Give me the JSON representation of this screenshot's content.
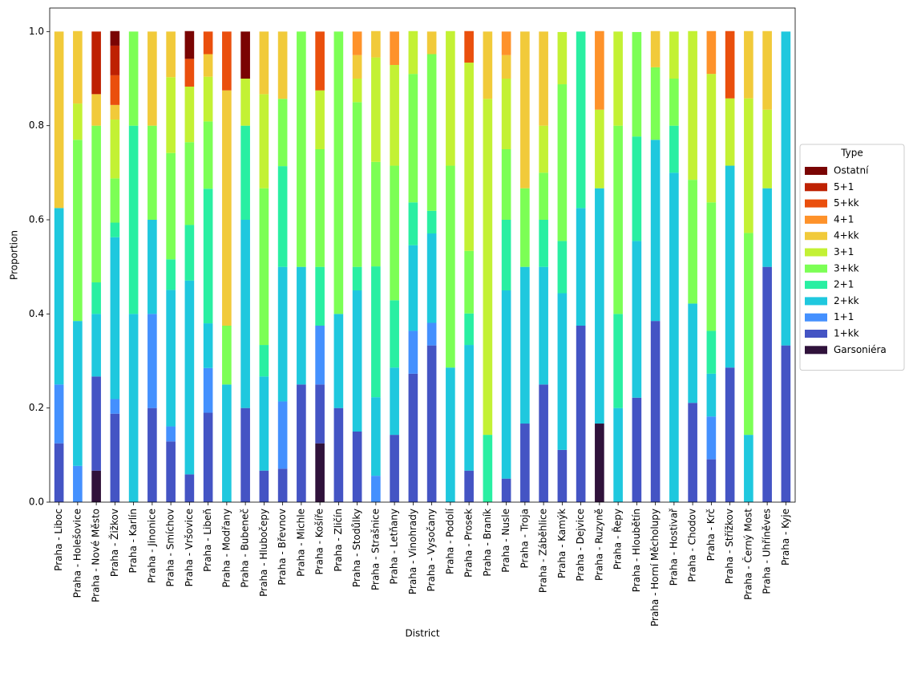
{
  "chart_data": {
    "type": "stacked_bar",
    "x_label": "District",
    "y_label": "Proportion",
    "legend_title": "Type",
    "legend_position": "outside right",
    "ylim": [
      0,
      1.05
    ],
    "yticks": [
      {
        "value": 0,
        "label": "0.0"
      },
      0.2,
      0.4,
      0.6,
      0.8,
      {
        "value": 1,
        "label": "1.0"
      }
    ],
    "categories": [
      "Praha - Liboc",
      "Praha - Holešovice",
      "Praha - Nové Město",
      "Praha - Žižkov",
      "Praha - Karlín",
      "Praha - Jinonice",
      "Praha - Smíchov",
      "Praha - Vršovice",
      "Praha - Libeň",
      "Praha - Modřany",
      "Praha - Bubeneč",
      "Praha - Hlubočepy",
      "Praha - Břevnov",
      "Praha - Michle",
      "Praha - Košíře",
      "Praha - Zličín",
      "Praha - Stodůlky",
      "Praha - Strašnice",
      "Praha - Letňany",
      "Praha - Vinohrady",
      "Praha - Vysočany",
      "Praha - Podolí",
      "Praha - Prosek",
      "Praha - Braník",
      "Praha - Nusle",
      "Praha - Troja",
      "Praha - Záběhlice",
      "Praha - Kamýk",
      "Praha - Dejvice",
      "Praha - Ruzyně",
      "Praha - Řepy",
      "Praha - Hloubětín",
      "Praha - Horní Měcholupy",
      "Praha - Hostivař",
      "Praha - Chodov",
      "Praha - Krč",
      "Praha - Střížkov",
      "Praha - Černý Most",
      "Praha - Uhříněves",
      "Praha - Kyje"
    ],
    "series": [
      {
        "name": "Garsoniéra",
        "color": "#30123b",
        "values": [
          0,
          0,
          0.067,
          0,
          0,
          0,
          0,
          0,
          0,
          0,
          0,
          0,
          0,
          0,
          0.125,
          0,
          0,
          0,
          0,
          0,
          0,
          0,
          0,
          0,
          0,
          0,
          0,
          0,
          0,
          0.167,
          0,
          0,
          0,
          0,
          0,
          0,
          0,
          0,
          0,
          0
        ]
      },
      {
        "name": "1+kk",
        "color": "#4454c4",
        "values": [
          0.125,
          0,
          0.2,
          0.188,
          0,
          0.2,
          0.129,
          0.059,
          0.19,
          0,
          0.2,
          0.067,
          0.071,
          0.25,
          0.125,
          0.2,
          0.15,
          0,
          0.143,
          0.273,
          0.333,
          0,
          0.067,
          0,
          0.05,
          0.167,
          0.25,
          0.111,
          0.375,
          0,
          0,
          0.222,
          0.385,
          0,
          0.211,
          0.091,
          0.286,
          0,
          0.5,
          0.333
        ]
      },
      {
        "name": "1+1",
        "color": "#4490fe",
        "values": [
          0.125,
          0.077,
          0,
          0.031,
          0,
          0.2,
          0.032,
          0,
          0.095,
          0,
          0,
          0,
          0.143,
          0,
          0.125,
          0,
          0,
          0.056,
          0,
          0.091,
          0.048,
          0,
          0,
          0,
          0,
          0,
          0,
          0,
          0,
          0,
          0,
          0,
          0,
          0,
          0,
          0.091,
          0,
          0,
          0,
          0
        ]
      },
      {
        "name": "2+kk",
        "color": "#1fc8de",
        "values": [
          0.375,
          0.308,
          0.133,
          0.344,
          0.4,
          0.2,
          0.29,
          0.412,
          0.095,
          0.25,
          0.4,
          0.2,
          0.286,
          0.25,
          0,
          0.2,
          0.3,
          0.167,
          0.143,
          0.182,
          0.19,
          0.286,
          0.267,
          0,
          0.4,
          0.333,
          0.25,
          0.333,
          0.25,
          0.5,
          0.2,
          0.333,
          0.385,
          0.7,
          0.211,
          0.091,
          0.429,
          0.143,
          0.167,
          0.667
        ]
      },
      {
        "name": "2+1",
        "color": "#29efa2",
        "values": [
          0,
          0,
          0.067,
          0.031,
          0.4,
          0,
          0.065,
          0.118,
          0.286,
          0,
          0.2,
          0.067,
          0.214,
          0,
          0.125,
          0,
          0.05,
          0.278,
          0.143,
          0.091,
          0.048,
          0,
          0.067,
          0.143,
          0.15,
          0,
          0.1,
          0.111,
          0.375,
          0,
          0.2,
          0.222,
          0,
          0.1,
          0,
          0.091,
          0,
          0,
          0,
          0
        ]
      },
      {
        "name": "3+kk",
        "color": "#7cff55",
        "values": [
          0,
          0.385,
          0.333,
          0.094,
          0.2,
          0.2,
          0.226,
          0.176,
          0.143,
          0.125,
          0,
          0.333,
          0.143,
          0.5,
          0.25,
          0.6,
          0.35,
          0.222,
          0.286,
          0.273,
          0.333,
          0.429,
          0.133,
          0,
          0.15,
          0.167,
          0.1,
          0.333,
          0,
          0,
          0.4,
          0.222,
          0.154,
          0.1,
          0.263,
          0.273,
          0,
          0.429,
          0,
          0
        ]
      },
      {
        "name": "3+1",
        "color": "#c3f134",
        "values": [
          0,
          0.077,
          0,
          0.125,
          0,
          0,
          0.161,
          0.118,
          0.095,
          0,
          0.1,
          0.2,
          0,
          0,
          0.125,
          0,
          0.05,
          0.222,
          0.214,
          0.091,
          0,
          0.286,
          0.4,
          0.714,
          0.15,
          0,
          0.1,
          0.111,
          0,
          0.167,
          0.2,
          0,
          0,
          0.1,
          0.316,
          0.273,
          0.143,
          0.286,
          0.167,
          0
        ]
      },
      {
        "name": "4+kk",
        "color": "#f1ca3a",
        "values": [
          0.375,
          0.154,
          0.067,
          0.031,
          0,
          0.2,
          0.097,
          0,
          0.048,
          0.5,
          0,
          0.133,
          0.143,
          0,
          0,
          0,
          0.05,
          0.056,
          0,
          0,
          0.048,
          0,
          0,
          0.143,
          0.05,
          0.333,
          0.2,
          0,
          0,
          0,
          0,
          0,
          0.077,
          0,
          0,
          0,
          0,
          0.143,
          0.167,
          0
        ]
      },
      {
        "name": "4+1",
        "color": "#fe922a",
        "values": [
          0,
          0,
          0,
          0,
          0,
          0,
          0,
          0,
          0,
          0,
          0,
          0,
          0,
          0,
          0,
          0,
          0.05,
          0,
          0.071,
          0,
          0,
          0,
          0,
          0,
          0.05,
          0,
          0,
          0,
          0,
          0.167,
          0,
          0,
          0,
          0,
          0,
          0.091,
          0,
          0,
          0,
          0
        ]
      },
      {
        "name": "5+kk",
        "color": "#ea4f0d",
        "values": [
          0,
          0,
          0,
          0.063,
          0,
          0,
          0,
          0.059,
          0.048,
          0.125,
          0,
          0,
          0,
          0,
          0.125,
          0,
          0,
          0,
          0,
          0,
          0,
          0,
          0.067,
          0,
          0,
          0,
          0,
          0,
          0,
          0,
          0,
          0,
          0,
          0,
          0,
          0,
          0.143,
          0,
          0,
          0
        ]
      },
      {
        "name": "5+1",
        "color": "#be2102",
        "values": [
          0,
          0,
          0.133,
          0.063,
          0,
          0,
          0,
          0,
          0,
          0,
          0,
          0,
          0,
          0,
          0,
          0,
          0,
          0,
          0,
          0,
          0,
          0,
          0,
          0,
          0,
          0,
          0,
          0,
          0,
          0,
          0,
          0,
          0,
          0,
          0,
          0,
          0,
          0,
          0,
          0
        ]
      },
      {
        "name": "Ostatní",
        "color": "#7a0403",
        "values": [
          0,
          0,
          0,
          0.031,
          0,
          0,
          0,
          0.059,
          0,
          0,
          0.1,
          0,
          0,
          0,
          0,
          0,
          0,
          0,
          0,
          0,
          0,
          0,
          0,
          0,
          0,
          0,
          0,
          0,
          0,
          0,
          0,
          0,
          0,
          0,
          0,
          0,
          0,
          0,
          0,
          0
        ]
      }
    ]
  }
}
